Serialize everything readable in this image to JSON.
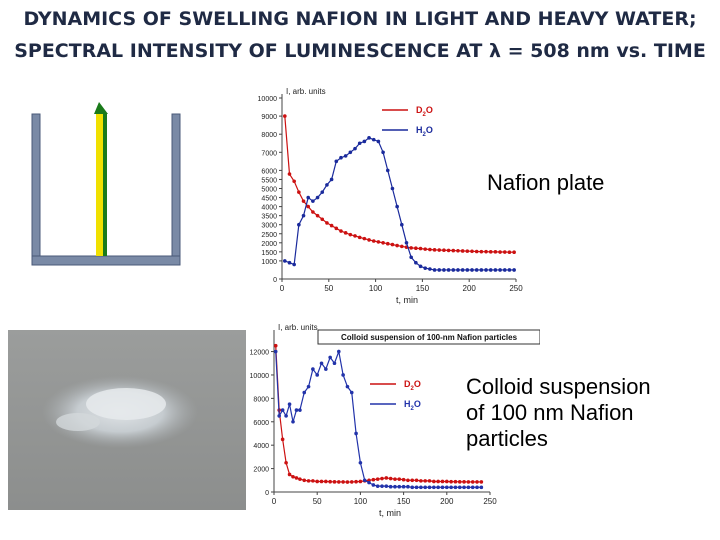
{
  "title_line1": "DYNAMICS OF SWELLING NAFION IN LIGHT AND HEAVY WATER;",
  "title_line2": "SPECTRAL INTENSITY OF LUMINESCENCE AT λ = 508 nm vs. TIME",
  "label_plate": "Nafion plate",
  "label_colloid": [
    "Colloid suspension",
    "of 100 nm Nafion",
    "particles"
  ],
  "colors": {
    "d2o": "#cc1111",
    "h2o1": "#1a2a9c",
    "h2o2": "#2233aa",
    "title": "#1f2a44",
    "vessel": "#7a8aa6"
  },
  "chart_data": [
    {
      "type": "line",
      "ylabel": "I, arb. units",
      "xlabel": "t, min",
      "xlim": [
        0,
        250
      ],
      "ylim": [
        0,
        10000
      ],
      "xticks": [
        0,
        50,
        100,
        150,
        200,
        250
      ],
      "yticks": [
        0,
        1000,
        1500,
        2000,
        2500,
        3000,
        3500,
        4000,
        4500,
        5000,
        5500,
        6000,
        7000,
        8000,
        9000,
        10000
      ],
      "series": [
        {
          "name": "D2O",
          "x": [
            3,
            8,
            13,
            18,
            23,
            28,
            33,
            38,
            43,
            48,
            53,
            58,
            63,
            68,
            73,
            78,
            83,
            88,
            93,
            98,
            103,
            108,
            113,
            118,
            123,
            128,
            133,
            138,
            143,
            148,
            153,
            158,
            163,
            168,
            173,
            178,
            183,
            188,
            193,
            198,
            203,
            208,
            213,
            218,
            223,
            228,
            233,
            238,
            243,
            248
          ],
          "y": [
            9000,
            5800,
            5400,
            4800,
            4300,
            4000,
            3700,
            3500,
            3300,
            3100,
            2950,
            2800,
            2650,
            2550,
            2450,
            2380,
            2300,
            2230,
            2160,
            2100,
            2050,
            2000,
            1950,
            1900,
            1850,
            1800,
            1760,
            1720,
            1700,
            1680,
            1650,
            1630,
            1610,
            1600,
            1590,
            1580,
            1570,
            1560,
            1550,
            1540,
            1530,
            1520,
            1510,
            1510,
            1500,
            1500,
            1490,
            1490,
            1480,
            1480
          ]
        },
        {
          "name": "H2O",
          "x": [
            3,
            8,
            13,
            18,
            23,
            28,
            33,
            38,
            43,
            48,
            53,
            58,
            63,
            68,
            73,
            78,
            83,
            88,
            93,
            98,
            103,
            108,
            113,
            118,
            123,
            128,
            133,
            138,
            143,
            148,
            153,
            158,
            163,
            168,
            173,
            178,
            183,
            188,
            193,
            198,
            203,
            208,
            213,
            218,
            223,
            228,
            233,
            238,
            243,
            248
          ],
          "y": [
            1000,
            900,
            800,
            3000,
            3500,
            4500,
            4300,
            4500,
            4800,
            5200,
            5500,
            6500,
            6700,
            6800,
            7000,
            7200,
            7500,
            7600,
            7800,
            7700,
            7600,
            7000,
            6000,
            5000,
            4000,
            3000,
            2000,
            1200,
            900,
            700,
            600,
            550,
            500,
            500,
            500,
            500,
            500,
            500,
            500,
            500,
            500,
            500,
            500,
            500,
            500,
            500,
            500,
            500,
            500,
            500
          ]
        }
      ]
    },
    {
      "type": "line",
      "title": "Colloid suspension of 100-nm Nafion particles",
      "ylabel": "I, arb. units",
      "xlabel": "t, min",
      "xlim": [
        0,
        250
      ],
      "ylim": [
        0,
        13500
      ],
      "xticks": [
        0,
        50,
        100,
        150,
        200,
        250
      ],
      "yticks": [
        0,
        2000,
        4000,
        6000,
        8000,
        10000,
        12000
      ],
      "series": [
        {
          "name": "D2O",
          "x": [
            2,
            6,
            10,
            14,
            18,
            22,
            26,
            30,
            35,
            40,
            45,
            50,
            55,
            60,
            65,
            70,
            75,
            80,
            85,
            90,
            95,
            100,
            105,
            110,
            115,
            120,
            125,
            130,
            135,
            140,
            145,
            150,
            155,
            160,
            165,
            170,
            175,
            180,
            185,
            190,
            195,
            200,
            205,
            210,
            215,
            220,
            225,
            230,
            235,
            240
          ],
          "y": [
            12500,
            7000,
            4500,
            2500,
            1500,
            1300,
            1200,
            1100,
            1000,
            950,
            950,
            900,
            900,
            900,
            880,
            870,
            860,
            860,
            850,
            860,
            880,
            900,
            950,
            1000,
            1050,
            1100,
            1150,
            1200,
            1150,
            1100,
            1100,
            1050,
            1000,
            1000,
            1000,
            950,
            950,
            950,
            900,
            900,
            900,
            900,
            880,
            880,
            870,
            870,
            860,
            860,
            860,
            860
          ]
        },
        {
          "name": "H2O",
          "x": [
            2,
            6,
            10,
            14,
            18,
            22,
            26,
            30,
            35,
            40,
            45,
            50,
            55,
            60,
            65,
            70,
            75,
            80,
            85,
            90,
            95,
            100,
            105,
            110,
            115,
            120,
            125,
            130,
            135,
            140,
            145,
            150,
            155,
            160,
            165,
            170,
            175,
            180,
            185,
            190,
            195,
            200,
            205,
            210,
            215,
            220,
            225,
            230,
            235,
            240
          ],
          "y": [
            12000,
            6500,
            7000,
            6500,
            7500,
            6000,
            7000,
            7000,
            8500,
            9000,
            10500,
            10000,
            11000,
            10500,
            11500,
            11000,
            12000,
            10000,
            9000,
            8500,
            5000,
            2500,
            1000,
            800,
            600,
            500,
            500,
            500,
            450,
            450,
            450,
            450,
            450,
            400,
            400,
            400,
            400,
            400,
            400,
            400,
            400,
            400,
            400,
            400,
            400,
            400,
            400,
            400,
            400,
            400
          ]
        }
      ]
    }
  ]
}
